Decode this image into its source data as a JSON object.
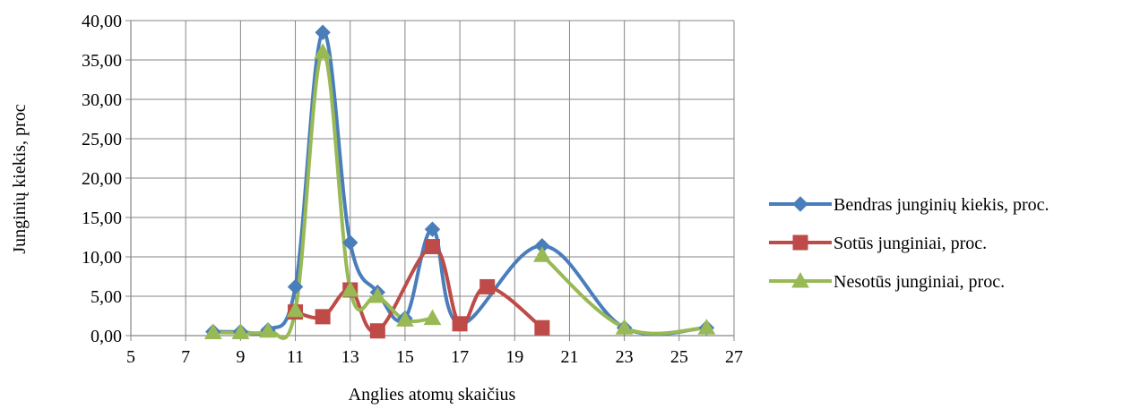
{
  "chart_data": {
    "type": "line",
    "title": "",
    "xlabel": "Anglies atomų skaičius",
    "ylabel": "Junginių kiekis, proc",
    "xlim": [
      5,
      27
    ],
    "ylim": [
      0,
      40
    ],
    "x_ticks": [
      5,
      7,
      9,
      11,
      13,
      15,
      17,
      19,
      21,
      23,
      25,
      27
    ],
    "x_tick_labels": [
      "5",
      "7",
      "9",
      "11",
      "13",
      "15",
      "17",
      "19",
      "21",
      "23",
      "25",
      "27"
    ],
    "y_ticks": [
      0,
      5,
      10,
      15,
      20,
      25,
      30,
      35,
      40
    ],
    "y_tick_labels": [
      "0,00",
      "5,00",
      "10,00",
      "15,00",
      "20,00",
      "25,00",
      "30,00",
      "35,00",
      "40,00"
    ],
    "grid": true,
    "smooth": true,
    "legend_position": "right",
    "series": [
      {
        "name": "Bendras junginių kiekis, proc.",
        "color": "#4a7ebb",
        "marker": "diamond",
        "points": [
          [
            8,
            0.5
          ],
          [
            9,
            0.5
          ],
          [
            10,
            0.7
          ],
          [
            11,
            6.2
          ],
          [
            12,
            38.5
          ],
          [
            13,
            11.8
          ],
          [
            14,
            5.5
          ],
          [
            15,
            2.2
          ],
          [
            16,
            13.5
          ],
          [
            17,
            1.5
          ],
          [
            20,
            11.4
          ],
          [
            23,
            1.0
          ],
          [
            26,
            1.0
          ]
        ]
      },
      {
        "name": "Sotūs junginiai, proc.",
        "color": "#be4b48",
        "marker": "square",
        "points": [
          [
            11,
            3.0
          ],
          [
            12,
            2.4
          ],
          [
            13,
            5.8
          ],
          [
            14,
            0.6
          ],
          [
            16,
            11.3
          ],
          [
            17,
            1.5
          ],
          [
            18,
            6.2
          ],
          [
            20,
            1.0
          ]
        ]
      },
      {
        "name": "Nesotūs junginiai, proc.",
        "color": "#98b954",
        "marker": "triangle",
        "points": [
          [
            8,
            0.4
          ],
          [
            9,
            0.4
          ],
          [
            10,
            0.6
          ],
          [
            11,
            3.2
          ],
          [
            12,
            36.0
          ],
          [
            13,
            5.8
          ],
          [
            14,
            5.0
          ],
          [
            15,
            2.0
          ],
          [
            16,
            2.2
          ]
        ],
        "points_segment_2": [
          [
            20,
            10.2
          ],
          [
            23,
            1.0
          ],
          [
            26,
            1.0
          ]
        ]
      }
    ]
  }
}
